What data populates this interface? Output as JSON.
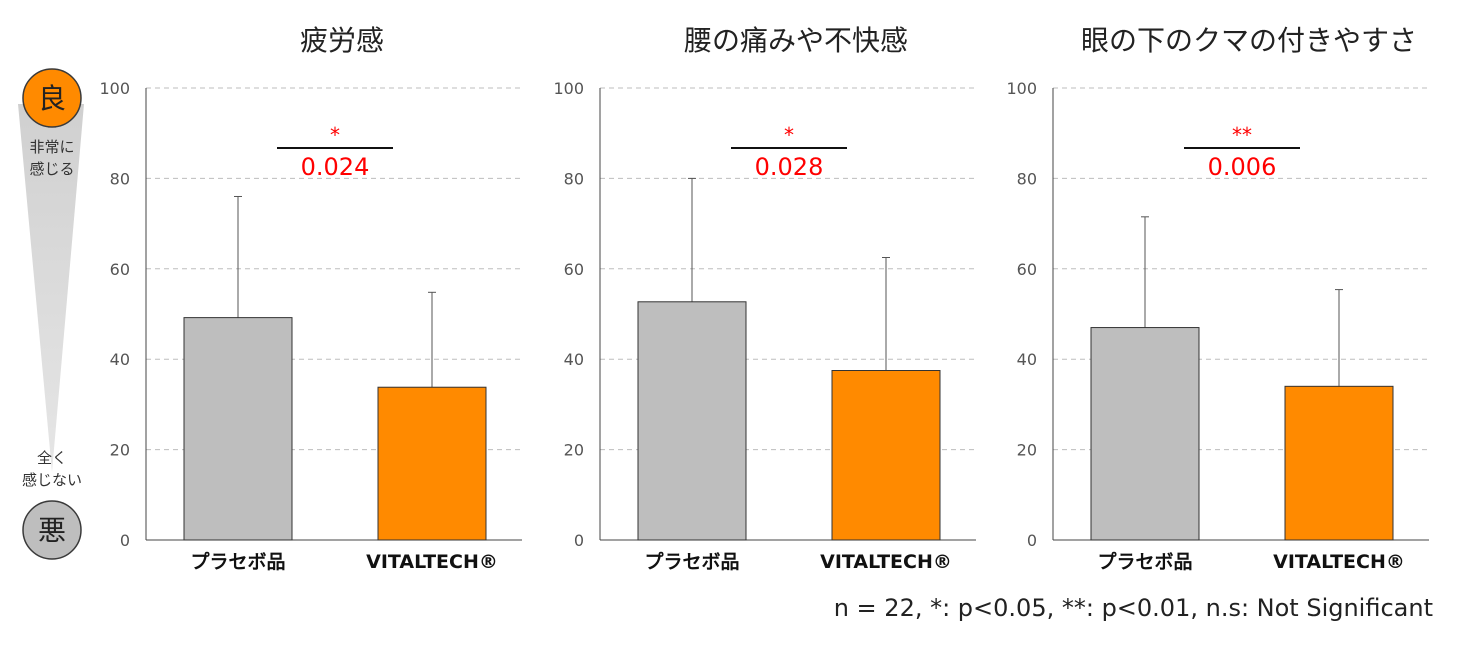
{
  "scale": {
    "good_glyph": "良",
    "good_label_line1": "非常に",
    "good_label_line2": "感じる",
    "bad_label_line1": "全く",
    "bad_label_line2": "感じない",
    "bad_glyph": "悪",
    "good_color": "#FF8A00",
    "bad_color": "#BEBEBE"
  },
  "colors": {
    "placebo": "#BEBEBE",
    "vitaltech": "#FF8A00",
    "significance": "#FF0000"
  },
  "footnote": "n = 22, *: p<0.05, **: p<0.01, n.s: Not Significant",
  "chart_data": [
    {
      "type": "bar",
      "title": "疲労感",
      "categories": [
        "プラセボ品",
        "VITALTECH®"
      ],
      "values": [
        49.2,
        33.8
      ],
      "error_upper": [
        76,
        54.8
      ],
      "ylim": [
        0,
        100
      ],
      "yticks": [
        0,
        20,
        40,
        60,
        80,
        100
      ],
      "grid": true,
      "significance": {
        "stars": "*",
        "p_value": "0.024"
      }
    },
    {
      "type": "bar",
      "title": "腰の痛みや不快感",
      "categories": [
        "プラセボ品",
        "VITALTECH®"
      ],
      "values": [
        52.7,
        37.5
      ],
      "error_upper": [
        80,
        62.5
      ],
      "ylim": [
        0,
        100
      ],
      "yticks": [
        0,
        20,
        40,
        60,
        80,
        100
      ],
      "grid": true,
      "significance": {
        "stars": "*",
        "p_value": "0.028"
      }
    },
    {
      "type": "bar",
      "title": "眼の下のクマの付きやすさ",
      "categories": [
        "プラセボ品",
        "VITALTECH®"
      ],
      "values": [
        47,
        34
      ],
      "error_upper": [
        71.5,
        55.4
      ],
      "ylim": [
        0,
        100
      ],
      "yticks": [
        0,
        20,
        40,
        60,
        80,
        100
      ],
      "grid": true,
      "significance": {
        "stars": "**",
        "p_value": "0.006"
      }
    }
  ]
}
